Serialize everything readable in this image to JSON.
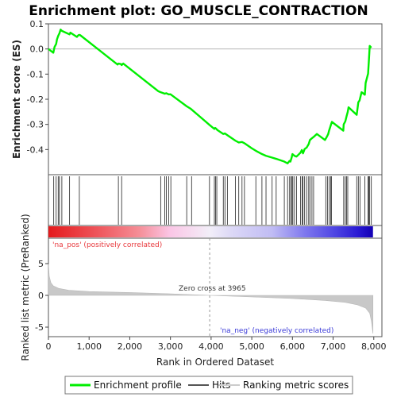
{
  "chart_data": {
    "type": "line",
    "title": "Enrichment plot: GO_MUSCLE_CONTRACTION",
    "xlabel": "Rank in Ordered Dataset",
    "ylabel_top": "Enrichment score (ES)",
    "ylabel_bottom": "Ranked list metric (PreRanked)",
    "xlim": [
      0,
      8200
    ],
    "es_ylim": [
      -0.5,
      0.1
    ],
    "metric_ylim": [
      -6.5,
      9
    ],
    "x_ticks": [
      0,
      1000,
      2000,
      3000,
      4000,
      5000,
      6000,
      7000,
      8000
    ],
    "x_tick_labels": [
      "0",
      "1,000",
      "2,000",
      "3,000",
      "4,000",
      "5,000",
      "6,000",
      "7,000",
      "8,000"
    ],
    "es_ticks": [
      0.1,
      0.0,
      -0.1,
      -0.2,
      -0.3,
      -0.4
    ],
    "es_tick_labels": [
      "0.1",
      "0.0",
      "-0.1",
      "-0.2",
      "-0.3",
      "-0.4"
    ],
    "metric_ticks": [
      5,
      0,
      -5
    ],
    "metric_tick_labels": [
      "5",
      "0",
      "-5"
    ],
    "zero_cross_rank": 3965,
    "zero_cross_label": "Zero cross at 3965",
    "pos_label": "'na_pos' (positively correlated)",
    "neg_label": "'na_neg' (negatively correlated)",
    "series": [
      {
        "name": "Enrichment profile",
        "color": "#00ee00",
        "x": [
          0,
          120,
          150,
          190,
          210,
          240,
          270,
          300,
          330,
          520,
          540,
          700,
          720,
          740,
          760,
          780,
          1700,
          1720,
          1780,
          1800,
          1840,
          2700,
          2760,
          2860,
          2900,
          2960,
          3000,
          3400,
          3500,
          3960,
          4080,
          4100,
          4130,
          4150,
          4300,
          4340,
          4400,
          4600,
          4680,
          4760,
          4820,
          5000,
          5100,
          5250,
          5350,
          5500,
          5600,
          5800,
          5880,
          5930,
          5950,
          5980,
          6000,
          6050,
          6100,
          6150,
          6200,
          6230,
          6260,
          6300,
          6350,
          6400,
          6430,
          6480,
          6520,
          6600,
          6800,
          6850,
          6880,
          6900,
          6930,
          6950,
          6970,
          7250,
          7260,
          7300,
          7330,
          7360,
          7380,
          7580,
          7620,
          7650,
          7700,
          7780,
          7800,
          7860,
          7880,
          7900,
          7940
        ],
        "y": [
          0.0,
          -0.015,
          0.008,
          0.02,
          0.038,
          0.052,
          0.062,
          0.077,
          0.072,
          0.058,
          0.065,
          0.048,
          0.052,
          0.055,
          0.056,
          0.055,
          -0.062,
          -0.058,
          -0.06,
          -0.064,
          -0.058,
          -0.168,
          -0.172,
          -0.178,
          -0.176,
          -0.181,
          -0.18,
          -0.228,
          -0.238,
          -0.302,
          -0.318,
          -0.314,
          -0.318,
          -0.322,
          -0.338,
          -0.336,
          -0.343,
          -0.365,
          -0.372,
          -0.37,
          -0.375,
          -0.395,
          -0.405,
          -0.418,
          -0.425,
          -0.432,
          -0.437,
          -0.448,
          -0.455,
          -0.445,
          -0.448,
          -0.432,
          -0.418,
          -0.425,
          -0.428,
          -0.42,
          -0.412,
          -0.402,
          -0.415,
          -0.398,
          -0.392,
          -0.378,
          -0.362,
          -0.355,
          -0.35,
          -0.338,
          -0.362,
          -0.348,
          -0.338,
          -0.325,
          -0.31,
          -0.3,
          -0.29,
          -0.325,
          -0.3,
          -0.288,
          -0.268,
          -0.25,
          -0.232,
          -0.262,
          -0.212,
          -0.205,
          -0.172,
          -0.182,
          -0.135,
          -0.098,
          -0.045,
          0.012,
          0.005
        ]
      }
    ],
    "hits": [
      130,
      190,
      240,
      270,
      330,
      520,
      760,
      1720,
      1800,
      2760,
      2860,
      2900,
      2960,
      3010,
      3400,
      3520,
      3960,
      4080,
      4110,
      4140,
      4300,
      4340,
      4400,
      4600,
      4680,
      4760,
      4820,
      5100,
      5250,
      5350,
      5500,
      5600,
      5800,
      5880,
      5930,
      5960,
      5990,
      6010,
      6050,
      6100,
      6200,
      6240,
      6260,
      6300,
      6350,
      6400,
      6430,
      6480,
      6520,
      6820,
      6860,
      6900,
      6940,
      6960,
      7260,
      7300,
      7330,
      7360,
      7580,
      7620,
      7660,
      7780,
      7860,
      7880,
      7900,
      7940
    ],
    "metric_profile": {
      "x": [
        0,
        20,
        60,
        120,
        250,
        500,
        1000,
        2000,
        3000,
        3965,
        5000,
        6000,
        6800,
        7300,
        7600,
        7800,
        7900,
        7940,
        7980
      ],
      "y": [
        5.0,
        3.0,
        2.0,
        1.5,
        1.1,
        0.8,
        0.6,
        0.45,
        0.25,
        0.0,
        -0.25,
        -0.5,
        -0.8,
        -1.1,
        -1.5,
        -2.0,
        -2.8,
        -4.0,
        -6.0
      ]
    },
    "heat_stops": [
      {
        "x": 0,
        "color": "#e41a1c"
      },
      {
        "x": 1300,
        "color": "#ef5a60"
      },
      {
        "x": 2200,
        "color": "#f58c95"
      },
      {
        "x": 3000,
        "color": "#fbc6e6"
      },
      {
        "x": 3965,
        "color": "#f2eef8"
      },
      {
        "x": 4500,
        "color": "#dcd8f6"
      },
      {
        "x": 5500,
        "color": "#c0bcf4"
      },
      {
        "x": 6300,
        "color": "#7f78ee"
      },
      {
        "x": 7000,
        "color": "#5148e4"
      },
      {
        "x": 7600,
        "color": "#2a1ad4"
      },
      {
        "x": 7980,
        "color": "#1200b4"
      }
    ],
    "legend": [
      {
        "label": "Enrichment profile",
        "color": "#00ee00"
      },
      {
        "label": "Hits",
        "color": "#555555"
      },
      {
        "label": "Ranking metric scores",
        "color": "#cccccc"
      }
    ]
  }
}
